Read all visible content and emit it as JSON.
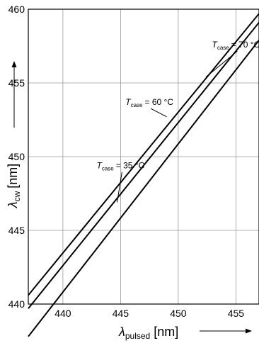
{
  "chart_data": {
    "type": "line",
    "xlabel": {
      "symbol": "λ",
      "subscript": "pulsed",
      "unit": "[nm]"
    },
    "ylabel": {
      "symbol": "λ",
      "subscript": "cw",
      "unit": "[nm]"
    },
    "xlim": [
      437,
      457
    ],
    "ylim": [
      440,
      460
    ],
    "xticks": [
      440,
      445,
      450,
      455
    ],
    "yticks": [
      440,
      445,
      450,
      455,
      460
    ],
    "grid": true,
    "series": [
      {
        "name": "35 °C",
        "x": [
          437,
          457
        ],
        "y": [
          437.8,
          457.9
        ]
      },
      {
        "name": "60 °C",
        "x": [
          437,
          457
        ],
        "y": [
          439.7,
          459.1
        ]
      },
      {
        "name": "70 °C",
        "x": [
          437,
          457
        ],
        "y": [
          440.6,
          459.7
        ]
      }
    ],
    "annotations": [
      {
        "prefix": "T",
        "subscript": "case",
        "text": "= 70 °C",
        "x": 455,
        "y": 457.4,
        "arrow_to": [
          452.4,
          455.4
        ]
      },
      {
        "prefix": "T",
        "subscript": "case",
        "text": "= 60 °C",
        "x": 447.5,
        "y": 453.5,
        "arrow_to": [
          449,
          452.7
        ]
      },
      {
        "prefix": "T",
        "subscript": "case",
        "text": "= 35 °C",
        "x": 445,
        "y": 449.2,
        "arrow_to": [
          444.7,
          446.9
        ]
      }
    ]
  }
}
